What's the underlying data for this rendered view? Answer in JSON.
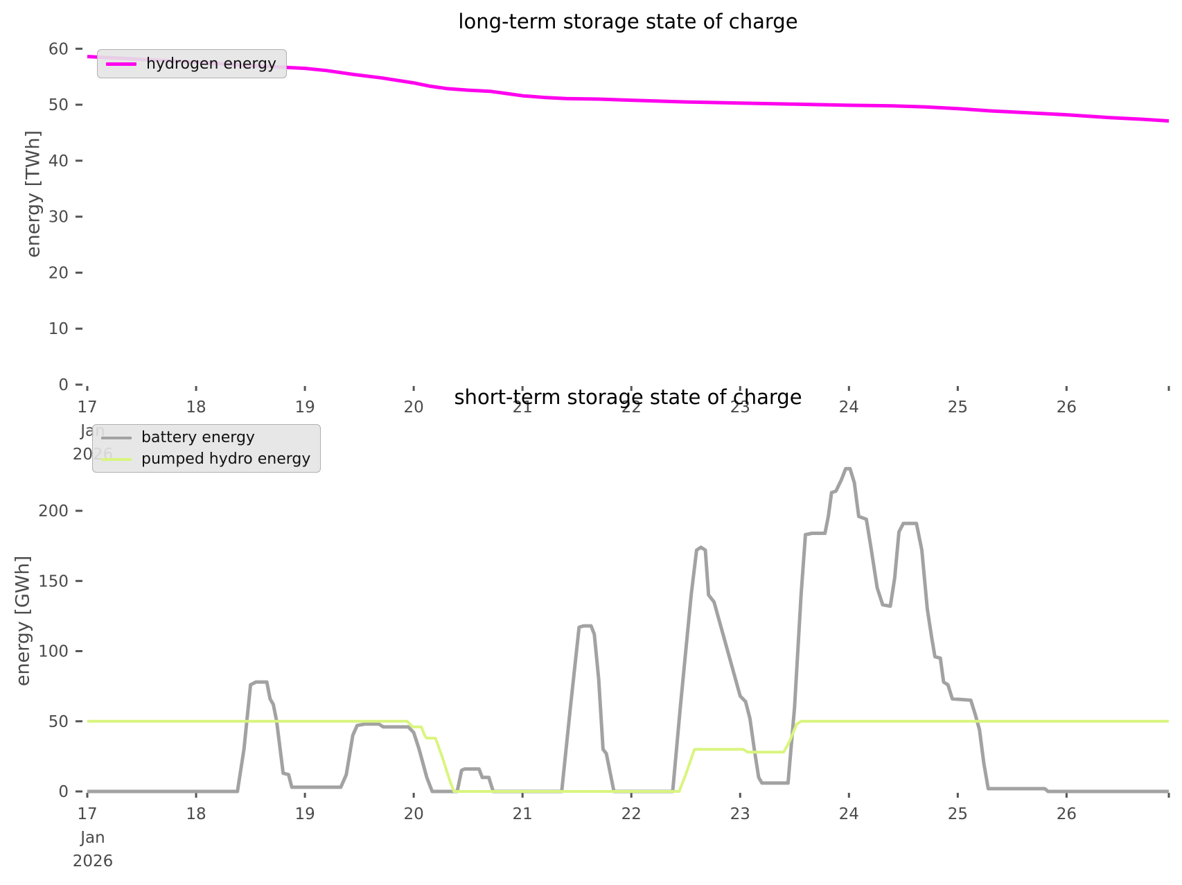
{
  "figure": {
    "background": "#ffffff",
    "tick_color": "#555555",
    "tick_label_color": "#4a4a4a"
  },
  "chart_data": [
    {
      "type": "line",
      "title": "long-term storage state of charge",
      "ylabel": "energy [TWh]",
      "xlabel": "",
      "grid": false,
      "xlim": [
        17,
        26.94
      ],
      "ylim": [
        0,
        64
      ],
      "yticks": [
        0,
        10,
        20,
        30,
        40,
        50,
        60
      ],
      "xticks": [
        {
          "v": 17,
          "label": "17",
          "sub": [
            "Jan",
            "2026"
          ]
        },
        {
          "v": 18,
          "label": "18"
        },
        {
          "v": 19,
          "label": "19"
        },
        {
          "v": 20,
          "label": "20"
        },
        {
          "v": 21,
          "label": "21"
        },
        {
          "v": 22,
          "label": "22"
        },
        {
          "v": 23,
          "label": "23"
        },
        {
          "v": 24,
          "label": "24"
        },
        {
          "v": 25,
          "label": "25"
        },
        {
          "v": 26,
          "label": "26"
        },
        {
          "v": 26.94,
          "label": ""
        }
      ],
      "legend": {
        "position": "upper-left",
        "entries": [
          {
            "id": "hydrogen-energy",
            "label": "hydrogen energy",
            "color": "#ff00ee",
            "sample_height": 5
          }
        ]
      },
      "series": [
        {
          "id": "hydrogen-energy",
          "name": "hydrogen energy",
          "color": "#ff00ee",
          "width": 5,
          "points": [
            [
              17.0,
              58.6
            ],
            [
              17.3,
              58.3
            ],
            [
              17.6,
              58.0
            ],
            [
              18.0,
              57.6
            ],
            [
              18.4,
              57.1
            ],
            [
              18.7,
              56.8
            ],
            [
              19.0,
              56.5
            ],
            [
              19.2,
              56.1
            ],
            [
              19.45,
              55.4
            ],
            [
              19.7,
              54.8
            ],
            [
              20.0,
              53.9
            ],
            [
              20.15,
              53.3
            ],
            [
              20.3,
              52.9
            ],
            [
              20.5,
              52.6
            ],
            [
              20.7,
              52.4
            ],
            [
              20.85,
              52.0
            ],
            [
              21.0,
              51.6
            ],
            [
              21.2,
              51.3
            ],
            [
              21.4,
              51.1
            ],
            [
              21.7,
              51.0
            ],
            [
              22.0,
              50.8
            ],
            [
              22.5,
              50.5
            ],
            [
              23.0,
              50.3
            ],
            [
              23.5,
              50.1
            ],
            [
              24.0,
              49.9
            ],
            [
              24.4,
              49.8
            ],
            [
              24.7,
              49.6
            ],
            [
              25.0,
              49.3
            ],
            [
              25.3,
              48.9
            ],
            [
              25.6,
              48.6
            ],
            [
              26.0,
              48.2
            ],
            [
              26.4,
              47.7
            ],
            [
              26.7,
              47.4
            ],
            [
              26.94,
              47.1
            ]
          ]
        }
      ]
    },
    {
      "type": "line",
      "title": "short-term storage state of charge",
      "ylabel": "energy [GWh]",
      "xlabel": "",
      "grid": false,
      "xlim": [
        17,
        26.94
      ],
      "ylim": [
        0,
        243
      ],
      "yticks": [
        0,
        50,
        100,
        150,
        200
      ],
      "xticks": [
        {
          "v": 17,
          "label": "17",
          "sub": [
            "Jan",
            "2026"
          ]
        },
        {
          "v": 18,
          "label": "18"
        },
        {
          "v": 19,
          "label": "19"
        },
        {
          "v": 20,
          "label": "20"
        },
        {
          "v": 21,
          "label": "21"
        },
        {
          "v": 22,
          "label": "22"
        },
        {
          "v": 23,
          "label": "23"
        },
        {
          "v": 24,
          "label": "24"
        },
        {
          "v": 25,
          "label": "25"
        },
        {
          "v": 26,
          "label": "26"
        },
        {
          "v": 26.94,
          "label": ""
        }
      ],
      "legend": {
        "position": "upper-left",
        "entries": [
          {
            "id": "battery-energy",
            "label": "battery energy",
            "color": "#a2a2a2",
            "sample_height": 4
          },
          {
            "id": "pumped-hydro-energy",
            "label": "pumped hydro energy",
            "color": "#d9f57f",
            "sample_height": 4
          }
        ]
      },
      "series": [
        {
          "id": "battery-energy",
          "name": "battery energy",
          "color": "#a2a2a2",
          "width": 5,
          "points": [
            [
              17.0,
              0
            ],
            [
              18.38,
              0
            ],
            [
              18.44,
              30
            ],
            [
              18.5,
              76
            ],
            [
              18.55,
              78
            ],
            [
              18.65,
              78
            ],
            [
              18.68,
              66
            ],
            [
              18.71,
              62
            ],
            [
              18.74,
              50
            ],
            [
              18.8,
              13
            ],
            [
              18.85,
              12
            ],
            [
              18.88,
              3
            ],
            [
              19.33,
              3
            ],
            [
              19.38,
              12
            ],
            [
              19.44,
              40
            ],
            [
              19.48,
              47
            ],
            [
              19.55,
              48
            ],
            [
              19.68,
              48
            ],
            [
              19.72,
              46
            ],
            [
              19.95,
              46
            ],
            [
              20.0,
              42
            ],
            [
              20.05,
              30
            ],
            [
              20.12,
              10
            ],
            [
              20.17,
              0
            ],
            [
              20.4,
              0
            ],
            [
              20.44,
              15
            ],
            [
              20.47,
              16
            ],
            [
              20.6,
              16
            ],
            [
              20.63,
              10
            ],
            [
              20.69,
              10
            ],
            [
              20.73,
              0
            ],
            [
              21.36,
              0
            ],
            [
              21.44,
              60
            ],
            [
              21.52,
              117
            ],
            [
              21.56,
              118
            ],
            [
              21.63,
              118
            ],
            [
              21.66,
              112
            ],
            [
              21.7,
              80
            ],
            [
              21.74,
              30
            ],
            [
              21.77,
              27
            ],
            [
              21.84,
              0
            ],
            [
              22.38,
              0
            ],
            [
              22.45,
              60
            ],
            [
              22.55,
              140
            ],
            [
              22.6,
              172
            ],
            [
              22.64,
              174
            ],
            [
              22.68,
              172
            ],
            [
              22.71,
              140
            ],
            [
              22.76,
              135
            ],
            [
              22.85,
              110
            ],
            [
              23.0,
              68
            ],
            [
              23.05,
              64
            ],
            [
              23.09,
              52
            ],
            [
              23.13,
              30
            ],
            [
              23.17,
              10
            ],
            [
              23.2,
              6
            ],
            [
              23.44,
              6
            ],
            [
              23.5,
              60
            ],
            [
              23.56,
              140
            ],
            [
              23.6,
              183
            ],
            [
              23.66,
              184
            ],
            [
              23.78,
              184
            ],
            [
              23.81,
              196
            ],
            [
              23.84,
              213
            ],
            [
              23.88,
              214
            ],
            [
              23.93,
              222
            ],
            [
              23.97,
              230
            ],
            [
              24.01,
              230
            ],
            [
              24.05,
              220
            ],
            [
              24.09,
              196
            ],
            [
              24.16,
              194
            ],
            [
              24.2,
              175
            ],
            [
              24.26,
              145
            ],
            [
              24.31,
              133
            ],
            [
              24.38,
              132
            ],
            [
              24.42,
              152
            ],
            [
              24.46,
              185
            ],
            [
              24.5,
              191
            ],
            [
              24.62,
              191
            ],
            [
              24.67,
              172
            ],
            [
              24.72,
              130
            ],
            [
              24.76,
              110
            ],
            [
              24.79,
              96
            ],
            [
              24.84,
              95
            ],
            [
              24.87,
              78
            ],
            [
              24.91,
              76
            ],
            [
              24.95,
              66
            ],
            [
              25.12,
              65
            ],
            [
              25.16,
              55
            ],
            [
              25.2,
              44
            ],
            [
              25.24,
              20
            ],
            [
              25.28,
              2
            ],
            [
              25.8,
              2
            ],
            [
              25.83,
              0
            ],
            [
              26.94,
              0
            ]
          ]
        },
        {
          "id": "pumped-hydro-energy",
          "name": "pumped hydro energy",
          "color": "#d9f57f",
          "width": 4,
          "points": [
            [
              17.0,
              50
            ],
            [
              19.94,
              50
            ],
            [
              19.99,
              46
            ],
            [
              20.07,
              46
            ],
            [
              20.1,
              40
            ],
            [
              20.12,
              38
            ],
            [
              20.2,
              38
            ],
            [
              20.26,
              25
            ],
            [
              20.33,
              8
            ],
            [
              20.37,
              0
            ],
            [
              22.44,
              0
            ],
            [
              22.5,
              12
            ],
            [
              22.58,
              30
            ],
            [
              22.65,
              30
            ],
            [
              23.03,
              30
            ],
            [
              23.07,
              28
            ],
            [
              23.4,
              28
            ],
            [
              23.45,
              35
            ],
            [
              23.52,
              48
            ],
            [
              23.56,
              50
            ],
            [
              26.94,
              50
            ]
          ]
        }
      ]
    }
  ]
}
